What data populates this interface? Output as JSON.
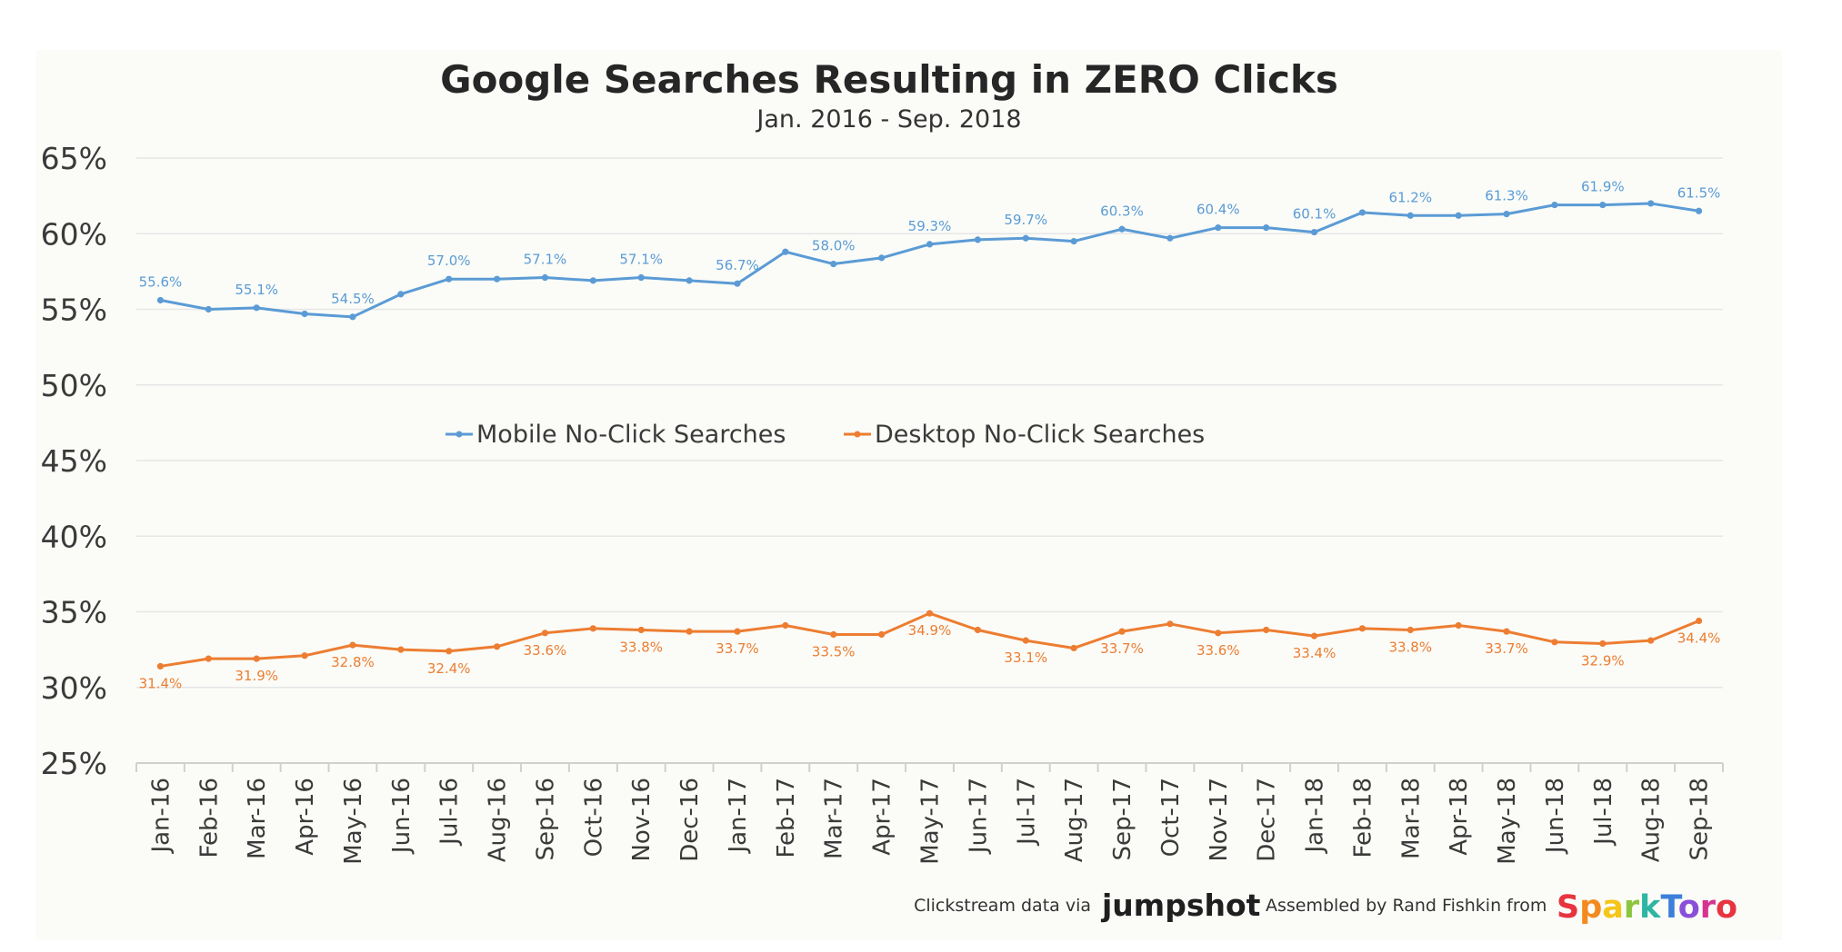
{
  "chart_data": {
    "type": "line",
    "title": "Google Searches Resulting in ZERO Clicks",
    "subtitle": "Jan. 2016 - Sep. 2018",
    "xlabel": "",
    "ylabel": "",
    "ylim": [
      25,
      65
    ],
    "yticks": [
      "25%",
      "30%",
      "35%",
      "40%",
      "45%",
      "50%",
      "55%",
      "60%",
      "65%"
    ],
    "ytick_values": [
      25,
      30,
      35,
      40,
      45,
      50,
      55,
      60,
      65
    ],
    "grid": true,
    "legend": "center",
    "categories": [
      "Jan-16",
      "Feb-16",
      "Mar-16",
      "Apr-16",
      "May-16",
      "Jun-16",
      "Jul-16",
      "Aug-16",
      "Sep-16",
      "Oct-16",
      "Nov-16",
      "Dec-16",
      "Jan-17",
      "Feb-17",
      "Mar-17",
      "Apr-17",
      "May-17",
      "Jun-17",
      "Jul-17",
      "Aug-17",
      "Sep-17",
      "Oct-17",
      "Nov-17",
      "Dec-17",
      "Jan-18",
      "Feb-18",
      "Mar-18",
      "Apr-18",
      "May-18",
      "Jun-18",
      "Jul-18",
      "Aug-18",
      "Sep-18"
    ],
    "series": [
      {
        "name": "Mobile No-Click Searches",
        "color": "#5b9bd5",
        "values": [
          55.6,
          55.0,
          55.1,
          54.7,
          54.5,
          56.0,
          57.0,
          57.0,
          57.1,
          56.9,
          57.1,
          56.9,
          56.7,
          58.8,
          58.0,
          58.4,
          59.3,
          59.6,
          59.7,
          59.5,
          60.3,
          59.7,
          60.4,
          60.4,
          60.1,
          61.4,
          61.2,
          61.2,
          61.3,
          61.9,
          61.9,
          62.0,
          61.5
        ],
        "labels": [
          "55.6%",
          "",
          "55.1%",
          "",
          "54.5%",
          "",
          "57.0%",
          "",
          "57.1%",
          "",
          "57.1%",
          "",
          "56.7%",
          "",
          "58.0%",
          "",
          "59.3%",
          "",
          "59.7%",
          "",
          "60.3%",
          "",
          "60.4%",
          "",
          "60.1%",
          "",
          "61.2%",
          "",
          "61.3%",
          "",
          "61.9%",
          "",
          "61.5%"
        ]
      },
      {
        "name": "Desktop No-Click Searches",
        "color": "#ed7d31",
        "values": [
          31.4,
          31.9,
          31.9,
          32.1,
          32.8,
          32.5,
          32.4,
          32.7,
          33.6,
          33.9,
          33.8,
          33.7,
          33.7,
          34.1,
          33.5,
          33.5,
          34.9,
          33.8,
          33.1,
          32.6,
          33.7,
          34.2,
          33.6,
          33.8,
          33.4,
          33.9,
          33.8,
          34.1,
          33.7,
          33.0,
          32.9,
          33.1,
          34.4
        ],
        "labels": [
          "31.4%",
          "",
          "31.9%",
          "",
          "32.8%",
          "",
          "32.4%",
          "",
          "33.6%",
          "",
          "33.8%",
          "",
          "33.7%",
          "",
          "33.5%",
          "",
          "34.9%",
          "",
          "33.1%",
          "",
          "33.7%",
          "",
          "33.6%",
          "",
          "33.4%",
          "",
          "33.8%",
          "",
          "33.7%",
          "",
          "32.9%",
          "",
          "34.4%"
        ]
      }
    ]
  },
  "footer": {
    "clickstream_text": "Clickstream data via",
    "jumpshot_brand": "jumpshot",
    "assembled_text": "Assembled by Rand Fishkin from",
    "sparktoro_brand": "SparkToro"
  },
  "colors": {
    "mobile": "#5b9bd5",
    "desktop": "#ed7d31",
    "sparktoro": [
      "#e8343f",
      "#f48a1f",
      "#f5c518",
      "#8cc63f",
      "#2fb5a3",
      "#3d7fd9",
      "#8a4fd8",
      "#d6338f",
      "#e8343f"
    ]
  }
}
